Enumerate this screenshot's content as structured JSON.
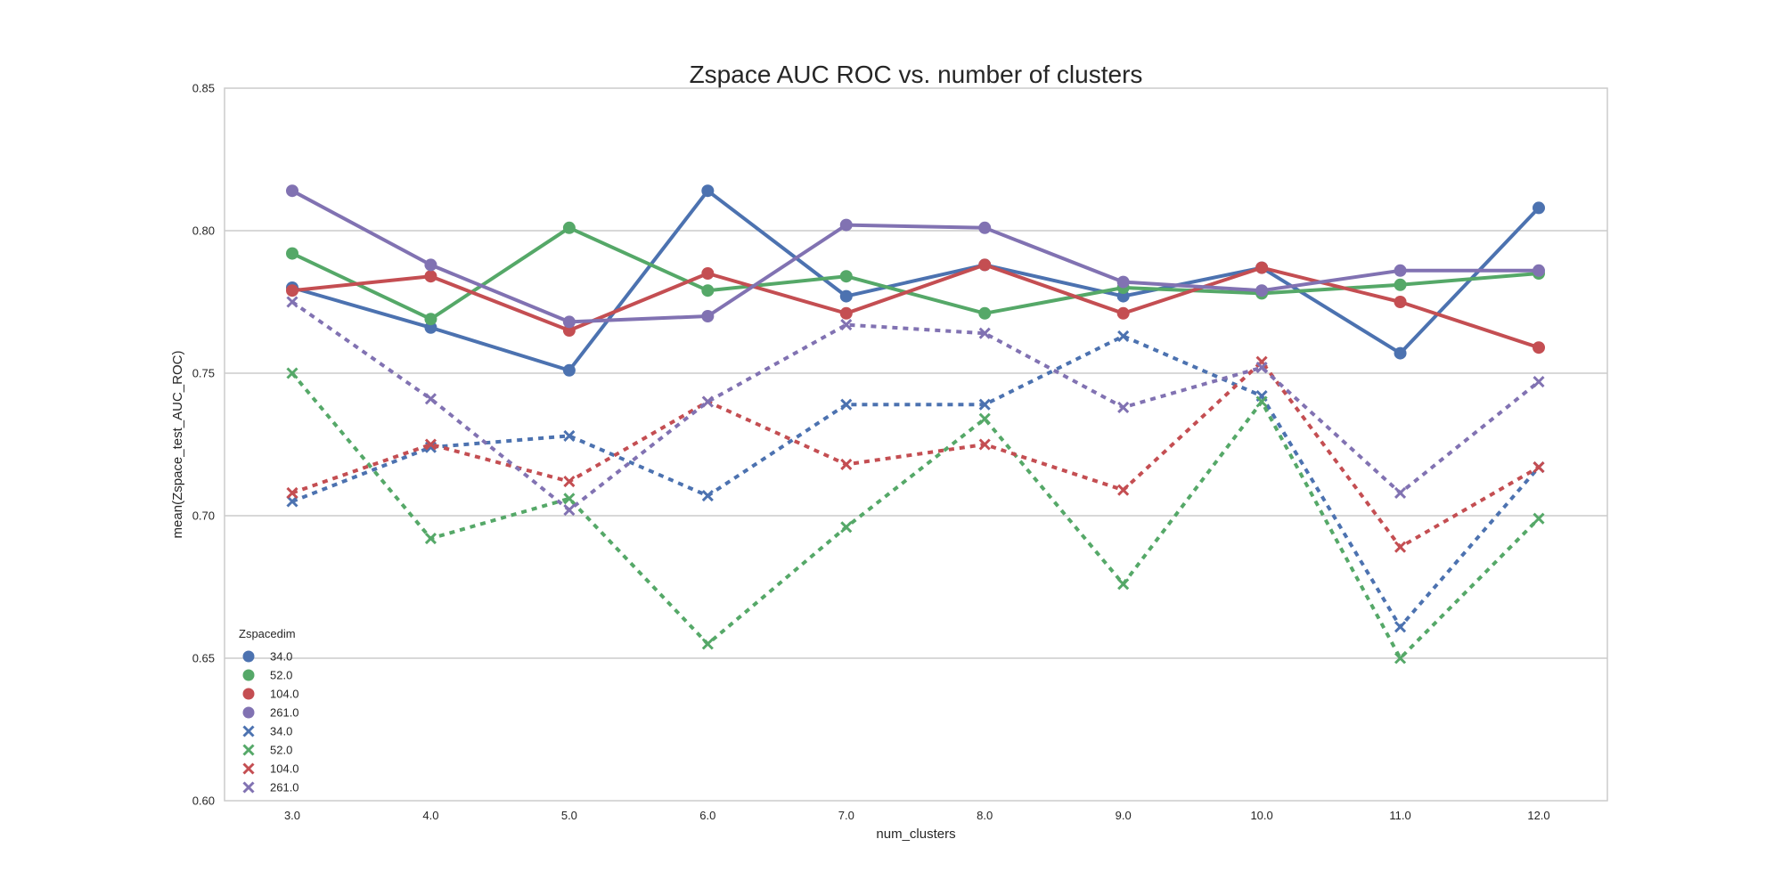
{
  "chart_data": {
    "type": "line",
    "title": "Zspace AUC ROC vs. number of clusters",
    "xlabel": "num_clusters",
    "ylabel": "mean(Zspace_test_AUC_ROC)",
    "categories": [
      "3.0",
      "4.0",
      "5.0",
      "6.0",
      "7.0",
      "8.0",
      "9.0",
      "10.0",
      "11.0",
      "12.0"
    ],
    "ylim": [
      0.6,
      0.85
    ],
    "yticks": [
      "0.60",
      "0.65",
      "0.70",
      "0.75",
      "0.80",
      "0.85"
    ],
    "grid": "horizontal",
    "legend_placement": "lower-left",
    "legend_title": "Zspacedim",
    "series": [
      {
        "name": "34.0",
        "marker": "circle",
        "dash": "solid",
        "color": "#4c72b0",
        "values": [
          0.78,
          0.766,
          0.751,
          0.814,
          0.777,
          0.788,
          0.777,
          0.787,
          0.757,
          0.808
        ]
      },
      {
        "name": "52.0",
        "marker": "circle",
        "dash": "solid",
        "color": "#55a868",
        "values": [
          0.792,
          0.769,
          0.801,
          0.779,
          0.784,
          0.771,
          0.78,
          0.778,
          0.781,
          0.785
        ]
      },
      {
        "name": "104.0",
        "marker": "circle",
        "dash": "solid",
        "color": "#c44e52",
        "values": [
          0.779,
          0.784,
          0.765,
          0.785,
          0.771,
          0.788,
          0.771,
          0.787,
          0.775,
          0.759
        ]
      },
      {
        "name": "261.0",
        "marker": "circle",
        "dash": "solid",
        "color": "#8172b2",
        "values": [
          0.814,
          0.788,
          0.768,
          0.77,
          0.802,
          0.801,
          0.782,
          0.779,
          0.786,
          0.786
        ]
      },
      {
        "name": "34.0",
        "marker": "x",
        "dash": "dashed",
        "color": "#4c72b0",
        "values": [
          0.705,
          0.724,
          0.728,
          0.707,
          0.739,
          0.739,
          0.763,
          0.742,
          0.661,
          0.717
        ]
      },
      {
        "name": "52.0",
        "marker": "x",
        "dash": "dashed",
        "color": "#55a868",
        "values": [
          0.75,
          0.692,
          0.706,
          0.655,
          0.696,
          0.734,
          0.676,
          0.74,
          0.65,
          0.699
        ]
      },
      {
        "name": "104.0",
        "marker": "x",
        "dash": "dashed",
        "color": "#c44e52",
        "values": [
          0.708,
          0.725,
          0.712,
          0.74,
          0.718,
          0.725,
          0.709,
          0.754,
          0.689,
          0.717
        ]
      },
      {
        "name": "261.0",
        "marker": "x",
        "dash": "dashed",
        "color": "#8172b2",
        "values": [
          0.775,
          0.741,
          0.702,
          0.74,
          0.767,
          0.764,
          0.738,
          0.752,
          0.708,
          0.747
        ]
      }
    ]
  }
}
